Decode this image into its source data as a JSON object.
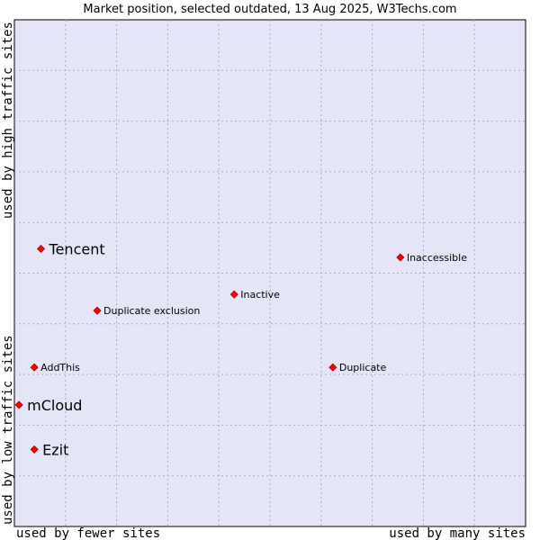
{
  "chart_data": {
    "type": "scatter",
    "title": "Market position, selected outdated, 13 Aug 2025, W3Techs.com",
    "xlabel_left": "used by fewer sites",
    "xlabel_right": "used by many sites",
    "ylabel_bottom": "used by low traffic sites",
    "ylabel_top": "used by high traffic sites",
    "xlim": [
      0,
      100
    ],
    "ylim": [
      0,
      100
    ],
    "grid": true,
    "colors": {
      "plot_background": "#e4e6f8",
      "grid": "#a9aacb",
      "marker": "#ff0000",
      "marker_outline": "#aa0000"
    },
    "points": [
      {
        "name": "Tencent",
        "x": 5.2,
        "y": 54.8,
        "emphasis": true
      },
      {
        "name": "Inaccessible",
        "x": 75.5,
        "y": 53.1,
        "emphasis": false
      },
      {
        "name": "Inactive",
        "x": 43.0,
        "y": 45.8,
        "emphasis": false
      },
      {
        "name": "Duplicate exclusion",
        "x": 16.2,
        "y": 42.6,
        "emphasis": false
      },
      {
        "name": "AddThis",
        "x": 3.9,
        "y": 31.4,
        "emphasis": false
      },
      {
        "name": "Duplicate",
        "x": 62.3,
        "y": 31.4,
        "emphasis": false
      },
      {
        "name": "mCloud",
        "x": 0.9,
        "y": 24.0,
        "emphasis": true
      },
      {
        "name": "Ezit",
        "x": 3.9,
        "y": 15.2,
        "emphasis": true
      }
    ]
  }
}
